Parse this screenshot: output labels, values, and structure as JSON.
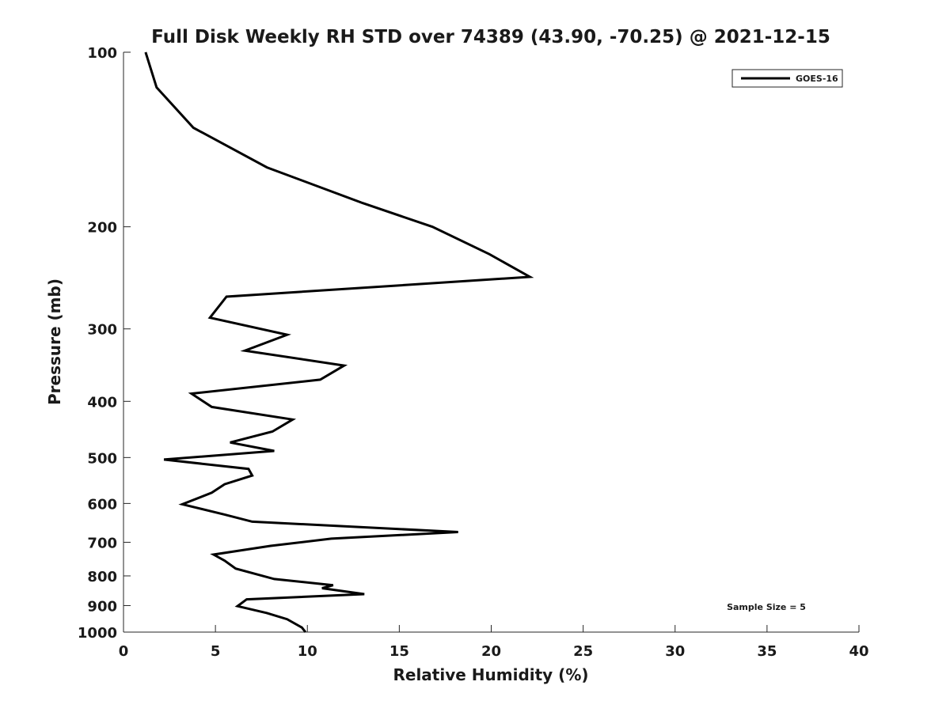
{
  "chart_data": {
    "type": "line",
    "title": "Full Disk Weekly RH STD over 74389 (43.90, -70.25) @ 2021-12-15",
    "xlabel": "Relative Humidity (%)",
    "ylabel": "Pressure (mb)",
    "xlim": [
      0,
      40
    ],
    "ylim": [
      1000,
      100
    ],
    "y_scale": "log",
    "y_reversed": true,
    "xticks": [
      "0",
      "5",
      "10",
      "15",
      "20",
      "25",
      "30",
      "35",
      "40"
    ],
    "yticks": [
      "100",
      "200",
      "300",
      "400",
      "500",
      "600",
      "700",
      "800",
      "900",
      "1000"
    ],
    "grid": false,
    "legend": {
      "position": "top-right",
      "entries": [
        "GOES-16"
      ]
    },
    "annotation": "Sample Size = 5",
    "series": [
      {
        "name": "GOES-16",
        "color": "#000000",
        "points": [
          [
            1.2,
            100
          ],
          [
            1.8,
            115
          ],
          [
            3.8,
            135
          ],
          [
            7.8,
            158
          ],
          [
            13,
            182
          ],
          [
            16.8,
            200
          ],
          [
            19.9,
            223
          ],
          [
            22.1,
            244
          ],
          [
            5.6,
            264
          ],
          [
            4.7,
            287
          ],
          [
            8.9,
            307
          ],
          [
            6.6,
            327
          ],
          [
            12,
            347
          ],
          [
            10.7,
            367
          ],
          [
            3.7,
            388
          ],
          [
            4.8,
            409
          ],
          [
            9.2,
            430
          ],
          [
            8.1,
            451
          ],
          [
            5.8,
            471
          ],
          [
            8.2,
            487
          ],
          [
            2.2,
            504
          ],
          [
            6.8,
            523
          ],
          [
            7,
            537
          ],
          [
            5.5,
            556
          ],
          [
            4.8,
            575
          ],
          [
            3.2,
            602
          ],
          [
            5.5,
            627
          ],
          [
            7,
            645
          ],
          [
            18.2,
            672
          ],
          [
            11.3,
            690
          ],
          [
            8,
            710
          ],
          [
            4.9,
            735
          ],
          [
            5.5,
            753
          ],
          [
            6.1,
            777
          ],
          [
            8.2,
            810
          ],
          [
            11.4,
            830
          ],
          [
            10.8,
            840
          ],
          [
            13.1,
            860
          ],
          [
            6.7,
            878
          ],
          [
            6.2,
            902
          ],
          [
            7.8,
            927
          ],
          [
            8.9,
            950
          ],
          [
            9.7,
            982
          ],
          [
            9.9,
            1000
          ]
        ]
      }
    ]
  }
}
